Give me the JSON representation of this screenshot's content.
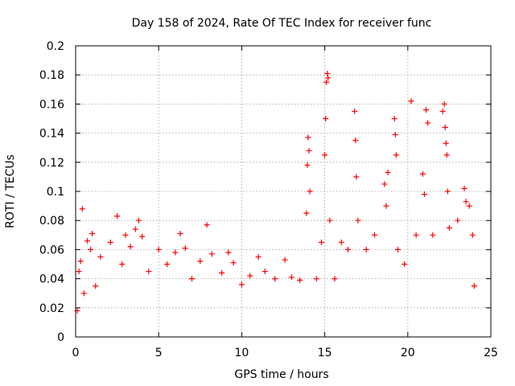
{
  "chart_data": {
    "type": "scatter",
    "title": "Day 158 of 2024, Rate Of TEC Index for receiver func",
    "xlabel": "GPS time / hours",
    "ylabel": "ROTI / TECUs",
    "xlim": [
      0,
      25
    ],
    "ylim": [
      0,
      0.2
    ],
    "x_ticks": [
      0,
      5,
      10,
      15,
      20,
      25
    ],
    "x_tick_labels": [
      "0",
      "5",
      "10",
      "15",
      "20",
      "25"
    ],
    "y_ticks": [
      0,
      0.02,
      0.04,
      0.06,
      0.08,
      0.1,
      0.12,
      0.14,
      0.16,
      0.18,
      0.2
    ],
    "y_tick_labels": [
      "0",
      "0.02",
      "0.04",
      "0.06",
      "0.08",
      "0.1",
      "0.12",
      "0.14",
      "0.16",
      "0.18",
      "0.2"
    ],
    "grid": true,
    "marker": "+",
    "series": [
      {
        "name": "ROTI",
        "color": "#ff0000",
        "points": [
          [
            0.1,
            0.018
          ],
          [
            0.2,
            0.045
          ],
          [
            0.3,
            0.052
          ],
          [
            0.4,
            0.088
          ],
          [
            0.5,
            0.03
          ],
          [
            0.7,
            0.066
          ],
          [
            0.9,
            0.06
          ],
          [
            1.0,
            0.071
          ],
          [
            1.2,
            0.035
          ],
          [
            1.5,
            0.055
          ],
          [
            2.1,
            0.065
          ],
          [
            2.5,
            0.083
          ],
          [
            2.8,
            0.05
          ],
          [
            3.0,
            0.07
          ],
          [
            3.3,
            0.062
          ],
          [
            3.6,
            0.074
          ],
          [
            3.8,
            0.08
          ],
          [
            4.0,
            0.069
          ],
          [
            4.4,
            0.045
          ],
          [
            5.0,
            0.06
          ],
          [
            5.5,
            0.05
          ],
          [
            6.0,
            0.058
          ],
          [
            6.3,
            0.071
          ],
          [
            6.6,
            0.061
          ],
          [
            7.0,
            0.04
          ],
          [
            7.5,
            0.052
          ],
          [
            7.9,
            0.077
          ],
          [
            8.2,
            0.057
          ],
          [
            8.8,
            0.044
          ],
          [
            9.2,
            0.058
          ],
          [
            9.5,
            0.051
          ],
          [
            10.0,
            0.036
          ],
          [
            10.5,
            0.042
          ],
          [
            11.0,
            0.055
          ],
          [
            11.4,
            0.045
          ],
          [
            12.0,
            0.04
          ],
          [
            12.6,
            0.053
          ],
          [
            13.0,
            0.041
          ],
          [
            13.5,
            0.039
          ],
          [
            13.9,
            0.085
          ],
          [
            13.95,
            0.118
          ],
          [
            14.0,
            0.137
          ],
          [
            14.05,
            0.128
          ],
          [
            14.1,
            0.1
          ],
          [
            14.5,
            0.04
          ],
          [
            14.8,
            0.065
          ],
          [
            15.0,
            0.125
          ],
          [
            15.05,
            0.15
          ],
          [
            15.1,
            0.175
          ],
          [
            15.15,
            0.181
          ],
          [
            15.2,
            0.178
          ],
          [
            15.3,
            0.08
          ],
          [
            15.6,
            0.04
          ],
          [
            16.0,
            0.065
          ],
          [
            16.4,
            0.06
          ],
          [
            16.8,
            0.155
          ],
          [
            16.85,
            0.135
          ],
          [
            16.9,
            0.11
          ],
          [
            17.0,
            0.08
          ],
          [
            17.5,
            0.06
          ],
          [
            18.0,
            0.07
          ],
          [
            18.6,
            0.105
          ],
          [
            18.7,
            0.09
          ],
          [
            18.8,
            0.113
          ],
          [
            19.2,
            0.15
          ],
          [
            19.25,
            0.139
          ],
          [
            19.3,
            0.125
          ],
          [
            19.4,
            0.06
          ],
          [
            19.8,
            0.05
          ],
          [
            20.2,
            0.162
          ],
          [
            20.5,
            0.07
          ],
          [
            20.9,
            0.112
          ],
          [
            21.0,
            0.098
          ],
          [
            21.1,
            0.156
          ],
          [
            21.2,
            0.147
          ],
          [
            21.5,
            0.07
          ],
          [
            22.1,
            0.155
          ],
          [
            22.2,
            0.16
          ],
          [
            22.25,
            0.144
          ],
          [
            22.3,
            0.133
          ],
          [
            22.35,
            0.125
          ],
          [
            22.4,
            0.1
          ],
          [
            22.5,
            0.075
          ],
          [
            23.0,
            0.08
          ],
          [
            23.4,
            0.102
          ],
          [
            23.5,
            0.093
          ],
          [
            23.7,
            0.09
          ],
          [
            23.9,
            0.07
          ],
          [
            24.0,
            0.035
          ]
        ]
      }
    ]
  }
}
